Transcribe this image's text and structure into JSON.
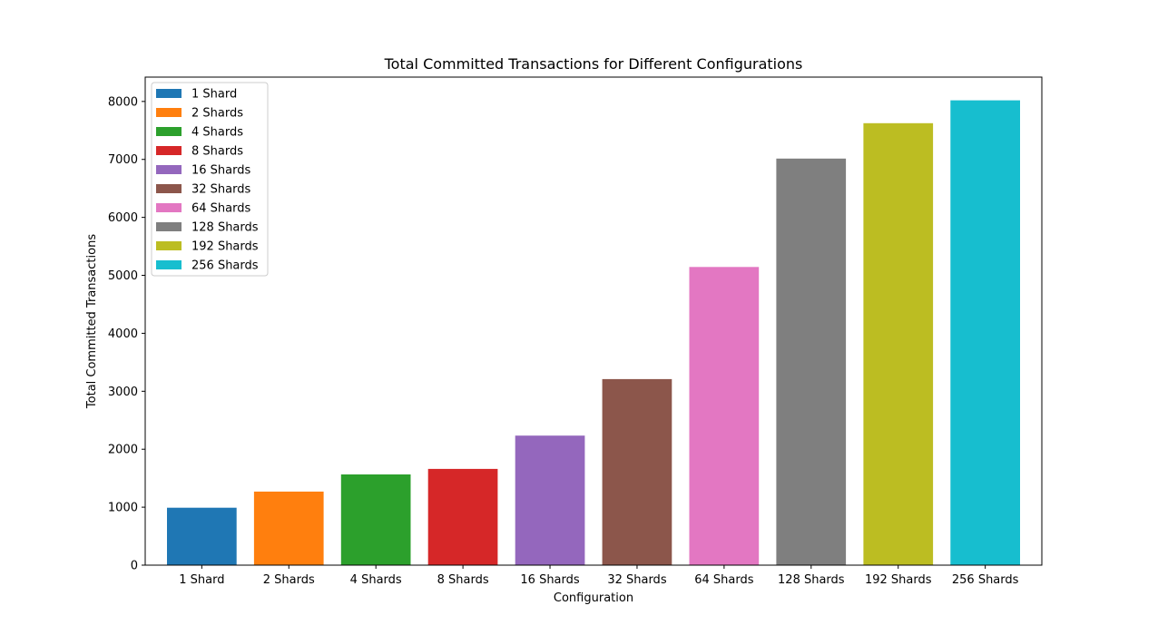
{
  "chart_data": {
    "type": "bar",
    "title": "Total Committed Transactions for Different Configurations",
    "xlabel": "Configuration",
    "ylabel": "Total Committed Transactions",
    "categories": [
      "1 Shard",
      "2 Shards",
      "4 Shards",
      "8 Shards",
      "16 Shards",
      "32 Shards",
      "64 Shards",
      "128 Shards",
      "192 Shards",
      "256 Shards"
    ],
    "values": [
      990,
      1270,
      1565,
      1660,
      2235,
      3210,
      5145,
      7015,
      7625,
      8020
    ],
    "colors": [
      "#1f77b4",
      "#ff7f0e",
      "#2ca02c",
      "#d62728",
      "#9467bd",
      "#8c564b",
      "#e377c2",
      "#7f7f7f",
      "#bcbd22",
      "#17becf"
    ],
    "ylim": [
      0,
      8420
    ],
    "yticks": [
      0,
      1000,
      2000,
      3000,
      4000,
      5000,
      6000,
      7000,
      8000
    ],
    "legend": {
      "placement": "top-left",
      "entries": [
        "1 Shard",
        "2 Shards",
        "4 Shards",
        "8 Shards",
        "16 Shards",
        "32 Shards",
        "64 Shards",
        "128 Shards",
        "192 Shards",
        "256 Shards"
      ]
    },
    "grid": false
  }
}
